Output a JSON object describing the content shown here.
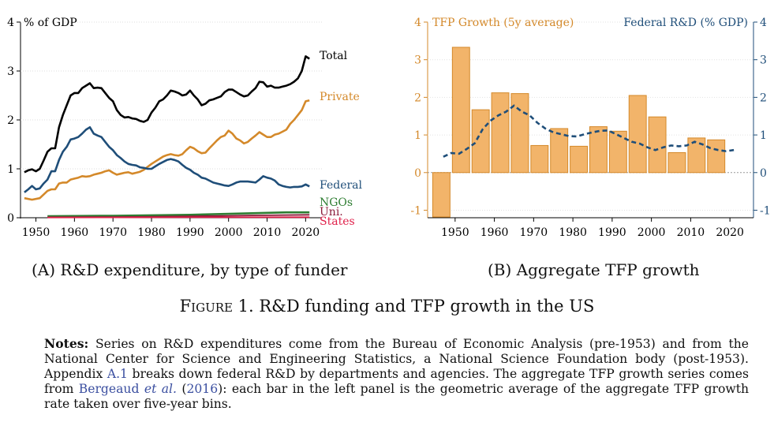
{
  "panel_a_caption": {
    "label": "(A)",
    "text": "R&D expenditure, by type of funder"
  },
  "panel_b_caption": {
    "label": "(B)",
    "text": "Aggregate TFP growth"
  },
  "figure_caption": {
    "label": "Figure 1.",
    "text": "R&D funding and TFP growth in the US"
  },
  "notes": {
    "label": "Notes:",
    "t1": " Series on R&D expenditures come from the Bureau of Economic Analysis (pre-1953) and from the National Center for Science and Engineering Statistics, a National Science Foundation body (post-1953). Appendix ",
    "link1": "A.1",
    "t2": " breaks down federal R&D by departments and agencies. The aggregate TFP growth series comes from ",
    "link2a": "Bergeaud",
    "link2b": "et al.",
    "link2c": "2016",
    "t3": "): each bar in the left panel is the geometric average of the aggregate TFP growth rate taken over five-year bins."
  },
  "chart_data": [
    {
      "type": "line",
      "ylabel": "% of GDP",
      "xlim": [
        1946,
        2023
      ],
      "ylim": [
        0,
        4
      ],
      "xticks": [
        1950,
        1960,
        1970,
        1980,
        1990,
        2000,
        2010,
        2020
      ],
      "yticks": [
        0,
        1,
        2,
        3,
        4
      ],
      "series": [
        {
          "name": "Total",
          "color": "#000000",
          "x": [
            1947,
            1948,
            1949,
            1950,
            1951,
            1952,
            1953,
            1954,
            1955,
            1956,
            1957,
            1958,
            1959,
            1960,
            1961,
            1962,
            1963,
            1964,
            1965,
            1966,
            1967,
            1968,
            1969,
            1970,
            1971,
            1972,
            1973,
            1974,
            1975,
            1976,
            1977,
            1978,
            1979,
            1980,
            1981,
            1982,
            1983,
            1984,
            1985,
            1986,
            1987,
            1988,
            1989,
            1990,
            1991,
            1992,
            1993,
            1994,
            1995,
            1996,
            1997,
            1998,
            1999,
            2000,
            2001,
            2002,
            2003,
            2004,
            2005,
            2006,
            2007,
            2008,
            2009,
            2010,
            2011,
            2012,
            2013,
            2014,
            2015,
            2016,
            2017,
            2018,
            2019,
            2020,
            2021
          ],
          "y": [
            0.93,
            0.97,
            0.99,
            0.95,
            1.0,
            1.17,
            1.35,
            1.42,
            1.42,
            1.85,
            2.1,
            2.3,
            2.5,
            2.55,
            2.55,
            2.65,
            2.7,
            2.75,
            2.65,
            2.66,
            2.65,
            2.55,
            2.45,
            2.38,
            2.2,
            2.1,
            2.05,
            2.06,
            2.03,
            2.02,
            1.98,
            1.96,
            2.0,
            2.15,
            2.25,
            2.38,
            2.42,
            2.5,
            2.6,
            2.58,
            2.55,
            2.5,
            2.52,
            2.6,
            2.5,
            2.42,
            2.3,
            2.33,
            2.4,
            2.42,
            2.45,
            2.48,
            2.57,
            2.62,
            2.62,
            2.57,
            2.52,
            2.48,
            2.5,
            2.58,
            2.65,
            2.78,
            2.77,
            2.68,
            2.7,
            2.66,
            2.66,
            2.68,
            2.7,
            2.73,
            2.78,
            2.85,
            3.0,
            3.3,
            3.25
          ]
        },
        {
          "name": "Private",
          "color": "#d4892a",
          "x": [
            1947,
            1949,
            1951,
            1953,
            1954,
            1955,
            1956,
            1957,
            1958,
            1959,
            1960,
            1961,
            1962,
            1963,
            1964,
            1965,
            1966,
            1967,
            1968,
            1969,
            1970,
            1971,
            1972,
            1973,
            1974,
            1975,
            1976,
            1977,
            1978,
            1979,
            1980,
            1981,
            1982,
            1983,
            1984,
            1985,
            1986,
            1987,
            1988,
            1989,
            1990,
            1991,
            1992,
            1993,
            1994,
            1995,
            1996,
            1997,
            1998,
            1999,
            2000,
            2001,
            2002,
            2003,
            2004,
            2005,
            2006,
            2007,
            2008,
            2009,
            2010,
            2011,
            2012,
            2013,
            2014,
            2015,
            2016,
            2017,
            2018,
            2019,
            2020,
            2021
          ],
          "y": [
            0.4,
            0.37,
            0.4,
            0.55,
            0.58,
            0.58,
            0.7,
            0.72,
            0.72,
            0.78,
            0.8,
            0.82,
            0.85,
            0.84,
            0.85,
            0.88,
            0.9,
            0.92,
            0.95,
            0.97,
            0.92,
            0.88,
            0.9,
            0.92,
            0.93,
            0.9,
            0.92,
            0.94,
            0.98,
            1.04,
            1.1,
            1.15,
            1.2,
            1.25,
            1.28,
            1.3,
            1.28,
            1.27,
            1.3,
            1.38,
            1.45,
            1.42,
            1.36,
            1.32,
            1.33,
            1.42,
            1.5,
            1.58,
            1.65,
            1.68,
            1.78,
            1.72,
            1.62,
            1.58,
            1.52,
            1.55,
            1.62,
            1.68,
            1.75,
            1.7,
            1.65,
            1.65,
            1.7,
            1.72,
            1.76,
            1.8,
            1.92,
            2.0,
            2.1,
            2.2,
            2.38,
            2.4
          ]
        },
        {
          "name": "Federal",
          "color": "#1f4e79",
          "x": [
            1947,
            1948,
            1949,
            1950,
            1951,
            1952,
            1953,
            1954,
            1955,
            1956,
            1957,
            1958,
            1959,
            1960,
            1961,
            1962,
            1963,
            1964,
            1965,
            1966,
            1967,
            1968,
            1969,
            1970,
            1971,
            1972,
            1973,
            1974,
            1975,
            1976,
            1977,
            1978,
            1979,
            1980,
            1981,
            1982,
            1983,
            1984,
            1985,
            1986,
            1987,
            1988,
            1989,
            1990,
            1991,
            1992,
            1993,
            1994,
            1995,
            1996,
            1997,
            1998,
            1999,
            2000,
            2001,
            2002,
            2003,
            2004,
            2005,
            2006,
            2007,
            2008,
            2009,
            2010,
            2011,
            2012,
            2013,
            2014,
            2015,
            2016,
            2017,
            2018,
            2019,
            2020,
            2021
          ],
          "y": [
            0.52,
            0.58,
            0.65,
            0.58,
            0.6,
            0.7,
            0.78,
            0.95,
            0.95,
            1.18,
            1.35,
            1.45,
            1.6,
            1.62,
            1.65,
            1.72,
            1.8,
            1.85,
            1.72,
            1.68,
            1.65,
            1.55,
            1.45,
            1.38,
            1.28,
            1.22,
            1.15,
            1.1,
            1.08,
            1.07,
            1.03,
            1.02,
            1.0,
            1.0,
            1.05,
            1.1,
            1.14,
            1.18,
            1.2,
            1.18,
            1.15,
            1.08,
            1.02,
            0.98,
            0.92,
            0.88,
            0.82,
            0.8,
            0.76,
            0.72,
            0.7,
            0.68,
            0.66,
            0.65,
            0.68,
            0.72,
            0.74,
            0.74,
            0.74,
            0.73,
            0.72,
            0.78,
            0.85,
            0.82,
            0.8,
            0.76,
            0.68,
            0.65,
            0.63,
            0.62,
            0.63,
            0.63,
            0.64,
            0.68,
            0.64
          ]
        },
        {
          "name": "NGOs",
          "color": "#2e7d32",
          "x": [
            1953,
            1960,
            1970,
            1980,
            1990,
            2000,
            2005,
            2010,
            2015,
            2021
          ],
          "y": [
            0.03,
            0.035,
            0.04,
            0.05,
            0.06,
            0.08,
            0.09,
            0.1,
            0.11,
            0.11
          ]
        },
        {
          "name": "Uni.",
          "color": "#8b1a3a",
          "x": [
            1953,
            1960,
            1970,
            1980,
            1990,
            2000,
            2010,
            2021
          ],
          "y": [
            0.01,
            0.012,
            0.015,
            0.02,
            0.03,
            0.04,
            0.05,
            0.06
          ]
        },
        {
          "name": "States",
          "color": "#e0204a",
          "x": [
            1953,
            1970,
            1990,
            2021
          ],
          "y": [
            0.005,
            0.007,
            0.01,
            0.012
          ]
        }
      ]
    },
    {
      "type": "bar",
      "left_axis_label": "TFP Growth (5y average)",
      "right_axis_label": "Federal R&D (% GDP)",
      "xlim": [
        1943,
        2026
      ],
      "ylim_left": [
        -1.2,
        4
      ],
      "ylim_right": [
        -1.2,
        4
      ],
      "xticks": [
        1950,
        1960,
        1970,
        1980,
        1990,
        2000,
        2010,
        2020
      ],
      "yticks_left": [
        -1,
        0,
        1,
        2,
        3,
        4
      ],
      "yticks_right": [
        -1,
        0,
        1,
        2,
        3,
        4
      ],
      "bar_color": "#f2b46a",
      "bar_edge": "#d4892a",
      "line_color": "#1f4e79",
      "bar_x": [
        1946.5,
        1951.5,
        1956.5,
        1961.5,
        1966.5,
        1971.5,
        1976.5,
        1981.5,
        1986.5,
        1991.5,
        1996.5,
        2001.5,
        2006.5,
        2011.5,
        2016.5
      ],
      "bar_values": [
        -1.18,
        3.33,
        1.67,
        2.12,
        2.1,
        0.72,
        1.17,
        0.7,
        1.22,
        1.1,
        2.05,
        1.48,
        0.53,
        0.92,
        0.87
      ],
      "line_x": [
        1947,
        1949,
        1951,
        1953,
        1955,
        1957,
        1959,
        1961,
        1963,
        1965,
        1967,
        1969,
        1971,
        1973,
        1975,
        1977,
        1979,
        1981,
        1983,
        1985,
        1987,
        1989,
        1991,
        1993,
        1995,
        1997,
        1999,
        2001,
        2003,
        2005,
        2007,
        2009,
        2011,
        2013,
        2015,
        2017,
        2019,
        2021
      ],
      "line_y": [
        0.42,
        0.52,
        0.5,
        0.63,
        0.78,
        1.15,
        1.38,
        1.52,
        1.62,
        1.78,
        1.62,
        1.52,
        1.32,
        1.17,
        1.07,
        1.02,
        0.97,
        0.96,
        1.02,
        1.07,
        1.11,
        1.12,
        1.02,
        0.92,
        0.82,
        0.77,
        0.67,
        0.6,
        0.67,
        0.72,
        0.7,
        0.72,
        0.82,
        0.75,
        0.65,
        0.6,
        0.57,
        0.6
      ]
    }
  ]
}
